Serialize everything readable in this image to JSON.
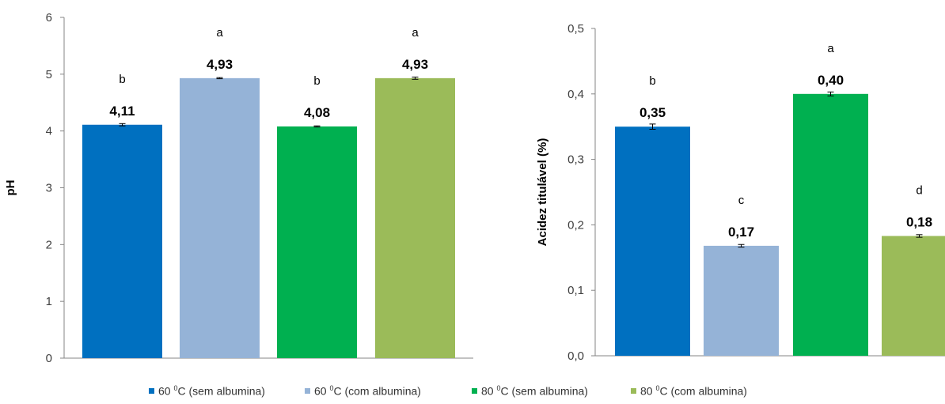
{
  "chart_data": [
    {
      "type": "bar",
      "title": "",
      "xlabel": "",
      "ylabel": "pH",
      "ylim": [
        0,
        6
      ],
      "yticks": [
        0,
        1,
        2,
        3,
        4,
        5,
        6
      ],
      "ytick_labels": [
        "0",
        "1",
        "2",
        "3",
        "4",
        "5",
        "6"
      ],
      "categories": [
        "60 °C (sem albumina)",
        "60 °C (com albumina)",
        "80 °C (sem albumina)",
        "80 °C (com albumina)"
      ],
      "values": [
        4.11,
        4.93,
        4.08,
        4.93
      ],
      "errors": [
        0.02,
        0.01,
        0.01,
        0.02
      ],
      "value_labels": [
        "4,11",
        "4,93",
        "4,08",
        "4,93"
      ],
      "significance_letters": [
        "b",
        "a",
        "b",
        "a"
      ],
      "colors": [
        "#0070c0",
        "#95b3d7",
        "#00b050",
        "#9bbb59"
      ],
      "grid": false
    },
    {
      "type": "bar",
      "title": "",
      "xlabel": "",
      "ylabel": "Acidez titulável (%)",
      "ylim": [
        0,
        0.5
      ],
      "yticks": [
        0,
        0.1,
        0.2,
        0.3,
        0.4,
        0.5
      ],
      "ytick_labels": [
        "0,0",
        "0,1",
        "0,2",
        "0,3",
        "0,4",
        "0,5"
      ],
      "categories": [
        "60 °C (sem albumina)",
        "60 °C (com albumina)",
        "80 °C (sem albumina)",
        "80 °C (com albumina)"
      ],
      "values": [
        0.35,
        0.168,
        0.4,
        0.183
      ],
      "errors": [
        0.004,
        0.002,
        0.003,
        0.002
      ],
      "value_labels": [
        "0,35",
        "0,17",
        "0,40",
        "0,18"
      ],
      "significance_letters": [
        "b",
        "c",
        "a",
        "d"
      ],
      "colors": [
        "#0070c0",
        "#95b3d7",
        "#00b050",
        "#9bbb59"
      ],
      "grid": false
    }
  ],
  "legend": {
    "placement": "bottom",
    "items": [
      {
        "temp": "60 ",
        "sup": "0",
        "rest": "C (sem albumina)",
        "color": "#0070c0"
      },
      {
        "temp": "60 ",
        "sup": "0",
        "rest": "C (com albumina)",
        "color": "#95b3d7"
      },
      {
        "temp": "80 ",
        "sup": "0",
        "rest": "C (sem albumina)",
        "color": "#00b050"
      },
      {
        "temp": "80 ",
        "sup": "0",
        "rest": "C (com albumina)",
        "color": "#9bbb59"
      }
    ]
  }
}
